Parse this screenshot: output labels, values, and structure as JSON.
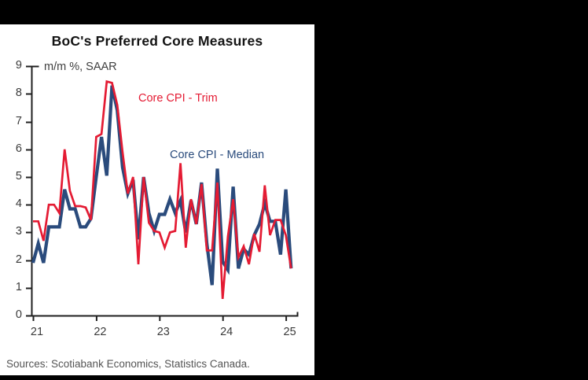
{
  "page": {
    "background": "#000000",
    "card_background": "#ffffff"
  },
  "chart_data": {
    "type": "line",
    "title": "BoC's Preferred Core Measures",
    "subtitle": "m/m %, SAAR",
    "source": "Sources: Scotiabank Economics, Statistics Canada.",
    "grid": false,
    "legend": "inline-labels",
    "ylim": [
      0,
      9
    ],
    "yticks": [
      9,
      8,
      7,
      6,
      5,
      4,
      3,
      2,
      1,
      0
    ],
    "xticks": [
      "21",
      "22",
      "23",
      "24",
      "25"
    ],
    "x": [
      "2021-01",
      "2021-02",
      "2021-03",
      "2021-04",
      "2021-05",
      "2021-06",
      "2021-07",
      "2021-08",
      "2021-09",
      "2021-10",
      "2021-11",
      "2021-12",
      "2022-01",
      "2022-02",
      "2022-03",
      "2022-04",
      "2022-05",
      "2022-06",
      "2022-07",
      "2022-08",
      "2022-09",
      "2022-10",
      "2022-11",
      "2022-12",
      "2023-01",
      "2023-02",
      "2023-03",
      "2023-04",
      "2023-05",
      "2023-06",
      "2023-07",
      "2023-08",
      "2023-09",
      "2023-10",
      "2023-11",
      "2023-12",
      "2024-01",
      "2024-02",
      "2024-03",
      "2024-04",
      "2024-05",
      "2024-06",
      "2024-07",
      "2024-08",
      "2024-09",
      "2024-10",
      "2024-11",
      "2024-12",
      "2025-01",
      "2025-02"
    ],
    "series": [
      {
        "name": "Core CPI - Trim",
        "color": "#e41b33",
        "values": [
          3.4,
          3.4,
          2.7,
          4.0,
          4.0,
          3.7,
          6.0,
          4.5,
          3.95,
          3.95,
          3.9,
          3.45,
          6.45,
          6.55,
          8.45,
          8.4,
          7.6,
          5.9,
          4.4,
          5.0,
          1.85,
          5.0,
          3.35,
          3.05,
          3.0,
          2.45,
          3.0,
          3.05,
          5.5,
          2.45,
          4.2,
          3.3,
          4.75,
          2.35,
          2.35,
          4.8,
          0.6,
          2.85,
          4.2,
          2.1,
          2.5,
          1.85,
          2.95,
          2.3,
          4.7,
          2.9,
          3.45,
          3.45,
          2.9,
          1.7
        ]
      },
      {
        "name": "Core CPI - Median",
        "color": "#2a4b7c",
        "values": [
          1.9,
          2.6,
          1.9,
          3.2,
          3.2,
          3.2,
          4.55,
          3.85,
          3.85,
          3.2,
          3.2,
          3.5,
          5.0,
          6.45,
          5.05,
          8.3,
          7.4,
          5.35,
          4.4,
          4.9,
          2.75,
          5.0,
          3.7,
          3.05,
          3.65,
          3.65,
          4.2,
          3.7,
          4.15,
          3.0,
          4.15,
          3.3,
          4.8,
          2.6,
          1.1,
          5.3,
          1.95,
          1.65,
          4.65,
          1.7,
          2.4,
          2.2,
          2.9,
          3.3,
          4.05,
          3.4,
          3.4,
          2.2,
          4.55,
          1.7
        ]
      }
    ]
  }
}
